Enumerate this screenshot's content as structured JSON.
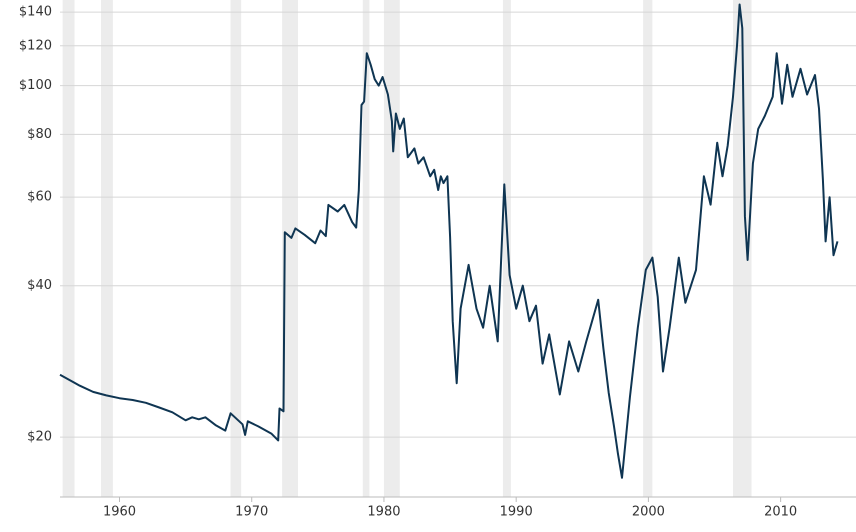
{
  "chart_data": {
    "type": "line",
    "log_scale": true,
    "grid": true,
    "x": [
      1955.5,
      1956.3,
      1957,
      1958,
      1959,
      1960,
      1961,
      1962,
      1963,
      1964,
      1965,
      1965.5,
      1966,
      1966.5,
      1967.3,
      1968,
      1968.4,
      1969.3,
      1969.5,
      1969.7,
      1970.5,
      1971.5,
      1972,
      1972.1,
      1972.4,
      1972.5,
      1973,
      1973.3,
      1974,
      1974.8,
      1975.2,
      1975.6,
      1975.8,
      1976.5,
      1977,
      1977.6,
      1977.9,
      1978.1,
      1978.3,
      1978.5,
      1978.7,
      1979,
      1979.3,
      1979.6,
      1979.9,
      1980.3,
      1980.6,
      1980.7,
      1980.9,
      1981.2,
      1981.5,
      1981.8,
      1982.3,
      1982.6,
      1983,
      1983.5,
      1983.8,
      1984.1,
      1984.3,
      1984.5,
      1984.8,
      1985,
      1985.2,
      1985.4,
      1985.5,
      1985.8,
      1986.4,
      1987,
      1987.5,
      1988,
      1988.6,
      1989.1,
      1989.5,
      1990,
      1990.5,
      1991,
      1991.5,
      1992,
      1992.5,
      1993.3,
      1994,
      1994.7,
      1995.3,
      1996.2,
      1996.6,
      1997,
      1997.4,
      1997.7,
      1998,
      1998.6,
      1999.2,
      1999.8,
      2000.3,
      2000.7,
      2001.1,
      2001.6,
      2002.3,
      2002.8,
      2003.6,
      2004.2,
      2004.7,
      2005.2,
      2005.6,
      2006,
      2006.4,
      2006.7,
      2006.9,
      2007.1,
      2007.3,
      2007.5,
      2007.9,
      2008.3,
      2008.8,
      2009.4,
      2009.7,
      2010.1,
      2010.5,
      2010.9,
      2011.5,
      2012,
      2012.6,
      2012.9,
      2013.2,
      2013.4,
      2013.7,
      2014,
      2014.3
    ],
    "series": [
      {
        "color": "#0f3552",
        "values": [
          26.6,
          25.9,
          25.3,
          24.6,
          24.2,
          23.9,
          23.7,
          23.4,
          22.9,
          22.4,
          21.6,
          21.9,
          21.7,
          21.9,
          21.1,
          20.6,
          22.3,
          21.2,
          20.2,
          21.5,
          21,
          20.3,
          19.7,
          22.8,
          22.5,
          51.1,
          49.8,
          52,
          50.5,
          48.6,
          51.5,
          50.2,
          57.9,
          56.2,
          57.9,
          53.5,
          52.2,
          61.9,
          91.5,
          93,
          116,
          110,
          103,
          100,
          104,
          96,
          85,
          74,
          88,
          82,
          86,
          72,
          75,
          70,
          72,
          66,
          68,
          62,
          66,
          64,
          66,
          50,
          34,
          28,
          25.6,
          36,
          44,
          36,
          33,
          40,
          31,
          63.6,
          42,
          36,
          40,
          34,
          36.5,
          28,
          32,
          24.3,
          31,
          27,
          31,
          37.5,
          30,
          24.5,
          21,
          18.5,
          16.6,
          24,
          33,
          43,
          45.5,
          38,
          27,
          33,
          45.5,
          37,
          43,
          66,
          58,
          77,
          66,
          76,
          95,
          120,
          145,
          130,
          55,
          45,
          70,
          82,
          87,
          95,
          116,
          92,
          110,
          95,
          108,
          96,
          105,
          90,
          65,
          49,
          60,
          46,
          49
        ]
      }
    ],
    "xlim": [
      1955.5,
      2015.7
    ],
    "xticks": [
      1960,
      1970,
      1980,
      1990,
      2000,
      2010
    ],
    "ylim": [
      15.2,
      148
    ],
    "yticks": [
      {
        "value": 20,
        "label": "$20"
      },
      {
        "value": 40,
        "label": "$40"
      },
      {
        "value": 60,
        "label": "$60"
      },
      {
        "value": 80,
        "label": "$80"
      },
      {
        "value": 100,
        "label": "$100"
      },
      {
        "value": 120,
        "label": "$120"
      },
      {
        "value": 140,
        "label": "$140"
      }
    ],
    "recession_bands": [
      [
        1955.7,
        1956.6
      ],
      [
        1958.6,
        1959.5
      ],
      [
        1968.4,
        1969.2
      ],
      [
        1972.3,
        1973.5
      ],
      [
        1978.4,
        1978.9
      ],
      [
        1980.0,
        1981.2
      ],
      [
        1989.0,
        1989.6
      ],
      [
        1999.6,
        2000.3
      ],
      [
        2006.4,
        2007.8
      ]
    ]
  }
}
